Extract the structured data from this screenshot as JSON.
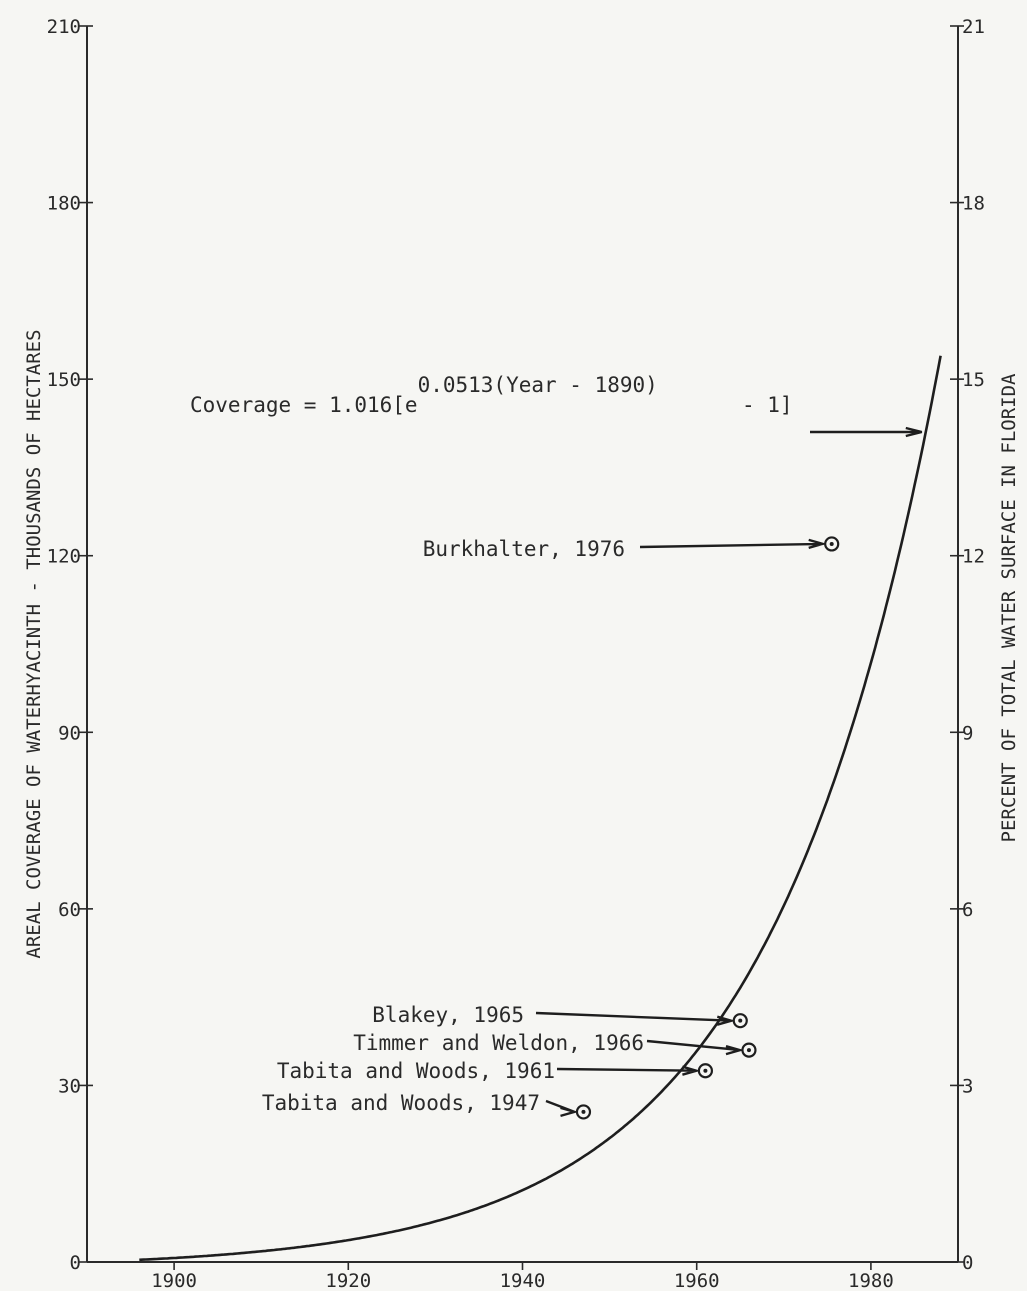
{
  "chart_data": {
    "type": "line",
    "title": "",
    "xlabel": "",
    "ylabel_left": "AREAL COVERAGE OF WATERHYACINTH - THOUSANDS OF HECTARES",
    "ylabel_right": "PERCENT OF TOTAL WATER SURFACE IN FLORIDA",
    "xlim": [
      1890,
      1990
    ],
    "ylim": [
      0,
      210
    ],
    "ylim_right": [
      0,
      21
    ],
    "x_ticks": [
      1900,
      1920,
      1940,
      1960,
      1980
    ],
    "x_tick_labels": [
      "1900",
      "1920",
      "1940",
      "1960",
      "1980"
    ],
    "y_ticks": [
      0,
      30,
      60,
      90,
      120,
      150,
      180,
      210
    ],
    "y_tick_labels": [
      "0",
      "30",
      "60",
      "90",
      "120",
      "150",
      "180",
      "210"
    ],
    "y_ticks_right": [
      0,
      3,
      6,
      9,
      12,
      15,
      18,
      21
    ],
    "y_tick_labels_right": [
      "0",
      "3",
      "6",
      "9",
      "12",
      "15",
      "18",
      "21"
    ],
    "grid": false,
    "model": {
      "coef": 1.016,
      "rate": 0.0513,
      "base_year": 1890,
      "x_start": 1896,
      "x_end": 1988,
      "label_prefix": "Coverage = 1.016[e",
      "label_exponent": "0.0513(Year - 1890)",
      "label_suffix": "- 1]"
    },
    "points": [
      {
        "label": "Burkhalter, 1976",
        "x": 1975.5,
        "y": 122
      },
      {
        "label": "Blakey, 1965",
        "x": 1965,
        "y": 41
      },
      {
        "label": "Timmer and Weldon, 1966",
        "x": 1966,
        "y": 36
      },
      {
        "label": "Tabita and Woods, 1961",
        "x": 1961,
        "y": 32.5
      },
      {
        "label": "Tabita and Woods, 1947",
        "x": 1947,
        "y": 25.5
      }
    ]
  }
}
